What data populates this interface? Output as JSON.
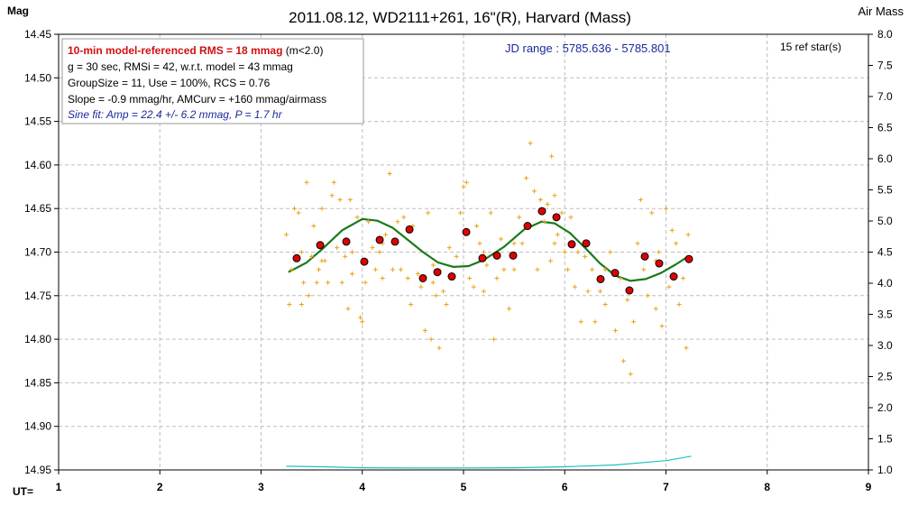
{
  "chart_data": {
    "type": "scatter",
    "title": "2011.08.12, WD2111+261, 16\"(R), Harvard (Mass)",
    "xlabel": "UT=",
    "ylabel": "Mag",
    "y2label": "Air Mass",
    "xlim": [
      1,
      9
    ],
    "ylim": [
      14.45,
      14.95
    ],
    "y_inverted": true,
    "y2lim": [
      1.0,
      8.0
    ],
    "grid": true,
    "x_ticks": [
      "1",
      "2",
      "3",
      "4",
      "5",
      "6",
      "7",
      "8",
      "9"
    ],
    "y_ticks": [
      "14.45",
      "14.50",
      "14.55",
      "14.60",
      "14.65",
      "14.70",
      "14.75",
      "14.80",
      "14.85",
      "14.90",
      "14.95"
    ],
    "y2_ticks": [
      "8.0",
      "7.5",
      "7.0",
      "6.5",
      "6.0",
      "5.5",
      "5.0",
      "4.5",
      "4.0",
      "3.5",
      "3.0",
      "2.5",
      "2.0",
      "1.5",
      "1.0"
    ],
    "jd_range": "JD range : 5785.636 - 5785.801",
    "ref_stars": "15 ref star(s)",
    "info_box": {
      "line1_bold": "10-min model-referenced RMS = 18 mmag",
      "line1_rest": " (m<2.0)",
      "line2": "g = 30 sec, RMSi = 42, w.r.t. model = 43 mmag",
      "line3": "GroupSize = 11, Use = 100%, RCS = 0.76",
      "line4": "Slope = -0.9 mmag/hr, AMCurv = +160 mmag/airmass",
      "line5": "Sine fit: Amp = 22.4 +/- 6.2 mmag, P = 1.7 hr"
    },
    "series": [
      {
        "name": "individual measurements",
        "marker": "plus",
        "color": "#e8a317",
        "points": [
          [
            3.25,
            14.68
          ],
          [
            3.28,
            14.76
          ],
          [
            3.3,
            14.72
          ],
          [
            3.33,
            14.65
          ],
          [
            3.37,
            14.655
          ],
          [
            3.4,
            14.7
          ],
          [
            3.42,
            14.735
          ],
          [
            3.45,
            14.62
          ],
          [
            3.47,
            14.75
          ],
          [
            3.5,
            14.705
          ],
          [
            3.52,
            14.67
          ],
          [
            3.55,
            14.735
          ],
          [
            3.57,
            14.72
          ],
          [
            3.6,
            14.65
          ],
          [
            3.63,
            14.71
          ],
          [
            3.66,
            14.735
          ],
          [
            3.7,
            14.635
          ],
          [
            3.72,
            14.62
          ],
          [
            3.75,
            14.695
          ],
          [
            3.78,
            14.64
          ],
          [
            3.8,
            14.735
          ],
          [
            3.83,
            14.705
          ],
          [
            3.86,
            14.765
          ],
          [
            3.88,
            14.64
          ],
          [
            3.9,
            14.7
          ],
          [
            3.95,
            14.66
          ],
          [
            3.98,
            14.775
          ],
          [
            4.0,
            14.78
          ],
          [
            4.03,
            14.735
          ],
          [
            4.06,
            14.665
          ],
          [
            4.1,
            14.695
          ],
          [
            4.13,
            14.72
          ],
          [
            4.17,
            14.7
          ],
          [
            4.2,
            14.73
          ],
          [
            4.23,
            14.68
          ],
          [
            4.27,
            14.61
          ],
          [
            4.3,
            14.72
          ],
          [
            4.35,
            14.665
          ],
          [
            4.38,
            14.72
          ],
          [
            4.41,
            14.66
          ],
          [
            4.45,
            14.73
          ],
          [
            4.48,
            14.76
          ],
          [
            4.5,
            14.67
          ],
          [
            4.55,
            14.725
          ],
          [
            4.58,
            14.74
          ],
          [
            4.62,
            14.79
          ],
          [
            4.65,
            14.655
          ],
          [
            4.68,
            14.8
          ],
          [
            4.7,
            14.715
          ],
          [
            4.73,
            14.75
          ],
          [
            4.76,
            14.81
          ],
          [
            4.8,
            14.745
          ],
          [
            4.83,
            14.76
          ],
          [
            4.86,
            14.695
          ],
          [
            4.9,
            14.73
          ],
          [
            4.93,
            14.705
          ],
          [
            4.97,
            14.655
          ],
          [
            5.0,
            14.625
          ],
          [
            5.03,
            14.62
          ],
          [
            5.06,
            14.73
          ],
          [
            5.1,
            14.74
          ],
          [
            5.13,
            14.67
          ],
          [
            5.16,
            14.69
          ],
          [
            5.2,
            14.745
          ],
          [
            5.23,
            14.715
          ],
          [
            5.27,
            14.655
          ],
          [
            5.3,
            14.8
          ],
          [
            5.33,
            14.73
          ],
          [
            5.37,
            14.685
          ],
          [
            5.4,
            14.72
          ],
          [
            5.45,
            14.765
          ],
          [
            5.5,
            14.72
          ],
          [
            5.55,
            14.66
          ],
          [
            5.58,
            14.69
          ],
          [
            5.62,
            14.615
          ],
          [
            5.66,
            14.575
          ],
          [
            5.7,
            14.63
          ],
          [
            5.73,
            14.72
          ],
          [
            5.76,
            14.64
          ],
          [
            5.8,
            14.665
          ],
          [
            5.83,
            14.645
          ],
          [
            5.86,
            14.71
          ],
          [
            5.87,
            14.59
          ],
          [
            5.9,
            14.635
          ],
          [
            5.93,
            14.68
          ],
          [
            5.97,
            14.655
          ],
          [
            6.0,
            14.7
          ],
          [
            6.03,
            14.72
          ],
          [
            6.06,
            14.66
          ],
          [
            6.1,
            14.74
          ],
          [
            6.13,
            14.7
          ],
          [
            6.16,
            14.78
          ],
          [
            6.2,
            14.705
          ],
          [
            6.23,
            14.745
          ],
          [
            6.27,
            14.72
          ],
          [
            6.3,
            14.78
          ],
          [
            6.35,
            14.745
          ],
          [
            6.4,
            14.76
          ],
          [
            6.45,
            14.7
          ],
          [
            6.5,
            14.79
          ],
          [
            6.55,
            14.73
          ],
          [
            6.58,
            14.825
          ],
          [
            6.62,
            14.755
          ],
          [
            6.65,
            14.84
          ],
          [
            6.68,
            14.78
          ],
          [
            6.72,
            14.69
          ],
          [
            6.75,
            14.64
          ],
          [
            6.78,
            14.72
          ],
          [
            6.82,
            14.75
          ],
          [
            6.86,
            14.655
          ],
          [
            6.9,
            14.765
          ],
          [
            6.93,
            14.7
          ],
          [
            6.96,
            14.785
          ],
          [
            7.0,
            14.65
          ],
          [
            7.03,
            14.74
          ],
          [
            7.06,
            14.675
          ],
          [
            7.1,
            14.69
          ],
          [
            7.13,
            14.76
          ],
          [
            7.17,
            14.73
          ],
          [
            7.2,
            14.81
          ],
          [
            7.22,
            14.68
          ],
          [
            3.4,
            14.76
          ],
          [
            3.6,
            14.71
          ],
          [
            3.9,
            14.725
          ],
          [
            4.2,
            14.69
          ],
          [
            4.7,
            14.735
          ],
          [
            5.2,
            14.7
          ],
          [
            5.5,
            14.69
          ],
          [
            5.9,
            14.69
          ],
          [
            6.4,
            14.72
          ],
          [
            6.9,
            14.71
          ]
        ]
      },
      {
        "name": "group averages",
        "marker": "circle",
        "color": "#e00000",
        "points": [
          [
            3.352,
            14.707
          ],
          [
            3.584,
            14.692
          ],
          [
            3.842,
            14.688
          ],
          [
            4.02,
            14.711
          ],
          [
            4.172,
            14.686
          ],
          [
            4.323,
            14.688
          ],
          [
            4.466,
            14.674
          ],
          [
            4.599,
            14.73
          ],
          [
            4.742,
            14.723
          ],
          [
            4.884,
            14.728
          ],
          [
            5.027,
            14.677
          ],
          [
            5.187,
            14.707
          ],
          [
            5.33,
            14.704
          ],
          [
            5.49,
            14.704
          ],
          [
            5.633,
            14.67
          ],
          [
            5.775,
            14.653
          ],
          [
            5.918,
            14.66
          ],
          [
            6.069,
            14.691
          ],
          [
            6.212,
            14.69
          ],
          [
            6.354,
            14.731
          ],
          [
            6.497,
            14.724
          ],
          [
            6.639,
            14.744
          ],
          [
            6.791,
            14.705
          ],
          [
            6.933,
            14.713
          ],
          [
            7.076,
            14.728
          ],
          [
            7.227,
            14.708
          ]
        ]
      },
      {
        "name": "sine fit model",
        "type": "line",
        "color": "#1a7a1a",
        "points": [
          [
            3.27,
            14.723
          ],
          [
            3.45,
            14.712
          ],
          [
            3.6,
            14.697
          ],
          [
            3.8,
            14.675
          ],
          [
            4.0,
            14.662
          ],
          [
            4.15,
            14.664
          ],
          [
            4.3,
            14.672
          ],
          [
            4.45,
            14.686
          ],
          [
            4.6,
            14.7
          ],
          [
            4.75,
            14.712
          ],
          [
            4.9,
            14.717
          ],
          [
            5.05,
            14.716
          ],
          [
            5.2,
            14.709
          ],
          [
            5.4,
            14.694
          ],
          [
            5.6,
            14.674
          ],
          [
            5.77,
            14.665
          ],
          [
            5.9,
            14.667
          ],
          [
            6.05,
            14.678
          ],
          [
            6.2,
            14.695
          ],
          [
            6.35,
            14.713
          ],
          [
            6.5,
            14.727
          ],
          [
            6.65,
            14.733
          ],
          [
            6.8,
            14.731
          ],
          [
            6.95,
            14.724
          ],
          [
            7.1,
            14.714
          ],
          [
            7.22,
            14.705
          ]
        ]
      },
      {
        "name": "air mass",
        "type": "line",
        "axis": "y2",
        "color": "#20c0c0",
        "points": [
          [
            3.25,
            1.06
          ],
          [
            3.6,
            1.05
          ],
          [
            4.0,
            1.035
          ],
          [
            4.5,
            1.03
          ],
          [
            5.0,
            1.03
          ],
          [
            5.5,
            1.035
          ],
          [
            6.0,
            1.05
          ],
          [
            6.5,
            1.08
          ],
          [
            7.0,
            1.15
          ],
          [
            7.25,
            1.22
          ]
        ]
      }
    ]
  }
}
